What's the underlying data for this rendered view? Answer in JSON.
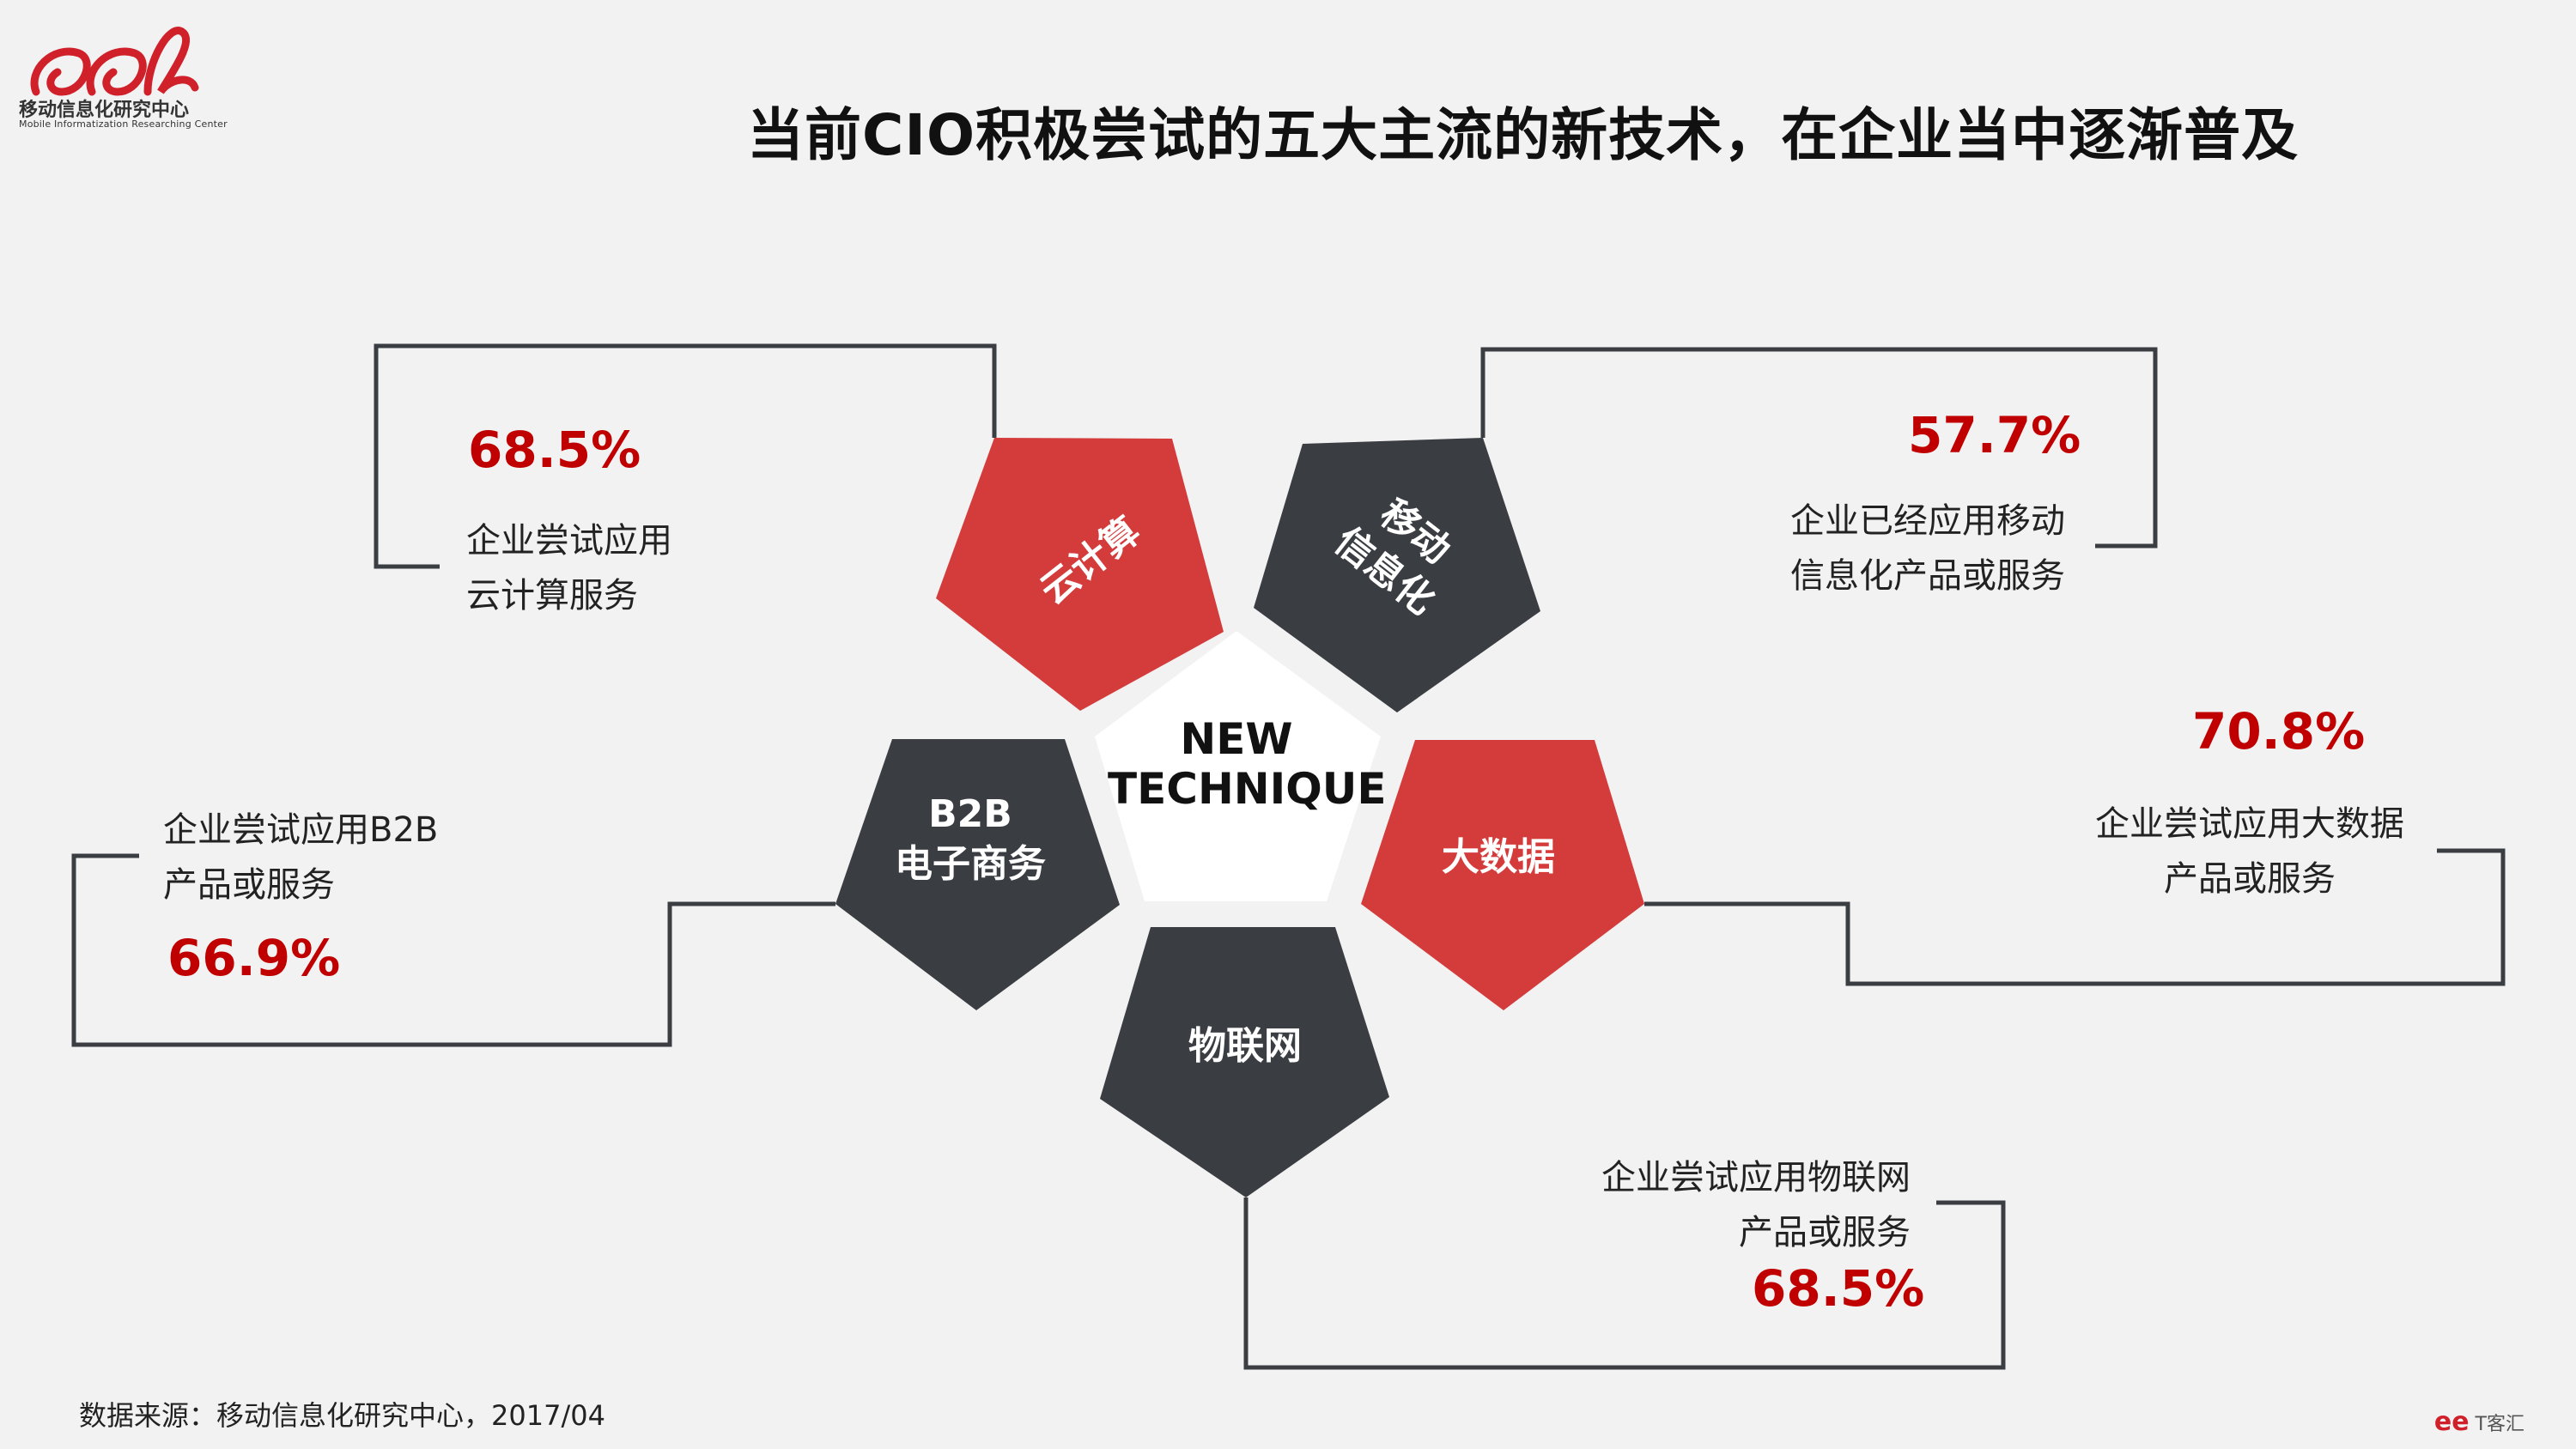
{
  "header": {
    "logo_cn": "移动信息化研究中心",
    "logo_en": "Mobile Informatization Researching Center",
    "title": "当前CIO积极尝试的五大主流的新技术，在企业当中逐渐普及"
  },
  "center": {
    "line1": "NEW",
    "line2": "TECHNIQUE"
  },
  "colors": {
    "red": "#d43c3c",
    "dark": "#3a3d42",
    "center": "#ffffff",
    "accent": "#c00000",
    "line": "#3a3d42"
  },
  "techs": {
    "cloud": {
      "label": "云计算",
      "percent": "68.5%",
      "desc1": "企业尝试应用",
      "desc2": "云计算服务"
    },
    "mobile": {
      "label1": "移动",
      "label2": "信息化",
      "percent": "57.7%",
      "desc1": "企业已经应用移动",
      "desc2": "信息化产品或服务"
    },
    "bigdata": {
      "label": "大数据",
      "percent": "70.8%",
      "desc1": "企业尝试应用大数据",
      "desc2": "产品或服务"
    },
    "b2b": {
      "label1": "B2B",
      "label2": "电子商务",
      "percent": "66.9%",
      "desc1": "企业尝试应用B2B",
      "desc2": "产品或服务"
    },
    "iot": {
      "label": "物联网",
      "percent": "68.5%",
      "desc1": "企业尝试应用物联网",
      "desc2": "产品或服务"
    }
  },
  "footer": {
    "source": "数据来源：移动信息化研究中心，2017/04",
    "watermark": "T客汇"
  }
}
